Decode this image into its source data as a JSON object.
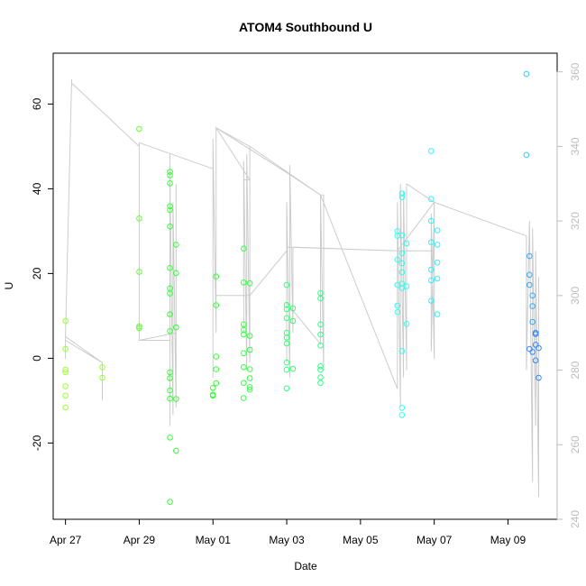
{
  "chart_data": {
    "type": "scatter",
    "title": "ATOM4 Southbound U",
    "xlabel": "Date",
    "ylabel": "U",
    "x_unit": "date",
    "xlim": [
      "2024-04-26T16:00",
      "2024-05-10T08:00"
    ],
    "ylim": [
      -38,
      72
    ],
    "x_ticks": [
      {
        "date": "2024-04-27T00:00",
        "label": "Apr 27"
      },
      {
        "date": "2024-04-29T00:00",
        "label": "Apr 29"
      },
      {
        "date": "2024-05-01T00:00",
        "label": "May 01"
      },
      {
        "date": "2024-05-03T00:00",
        "label": "May 03"
      },
      {
        "date": "2024-05-05T00:00",
        "label": "May 05"
      },
      {
        "date": "2024-05-07T00:00",
        "label": "May 07"
      },
      {
        "date": "2024-05-09T00:00",
        "label": "May 09"
      }
    ],
    "y_ticks": [
      -20,
      0,
      20,
      40,
      60
    ],
    "y2_range": [
      240,
      365
    ],
    "y2_ticks": [
      240,
      260,
      280,
      300,
      320,
      340,
      360
    ],
    "grid": false,
    "legend": "none",
    "points": [
      {
        "x": "2024-04-27T00:00",
        "y": 8.8,
        "color": "#99ff33"
      },
      {
        "x": "2024-04-27T00:00",
        "y": 2.2,
        "color": "#99ff33"
      },
      {
        "x": "2024-04-27T00:00",
        "y": -2.7,
        "color": "#99ff33"
      },
      {
        "x": "2024-04-27T00:00",
        "y": -3.3,
        "color": "#99ff33"
      },
      {
        "x": "2024-04-27T00:00",
        "y": -6.6,
        "color": "#99ff33"
      },
      {
        "x": "2024-04-27T00:00",
        "y": -8.8,
        "color": "#99ff33"
      },
      {
        "x": "2024-04-27T00:00",
        "y": -11.6,
        "color": "#99ff33"
      },
      {
        "x": "2024-04-28T00:00",
        "y": -2.1,
        "color": "#99ff33"
      },
      {
        "x": "2024-04-28T00:00",
        "y": -4.6,
        "color": "#99ff33"
      },
      {
        "x": "2024-04-29T00:00",
        "y": 54.1,
        "color": "#66ff33"
      },
      {
        "x": "2024-04-29T00:00",
        "y": 33.0,
        "color": "#66ff33"
      },
      {
        "x": "2024-04-29T00:00",
        "y": 20.4,
        "color": "#66ff33"
      },
      {
        "x": "2024-04-29T00:00",
        "y": 7.5,
        "color": "#66ff33"
      },
      {
        "x": "2024-04-29T00:00",
        "y": 7.1,
        "color": "#66ff33"
      },
      {
        "x": "2024-04-29T20:00",
        "y": 44.0,
        "color": "#33ff33"
      },
      {
        "x": "2024-04-29T20:00",
        "y": 43.2,
        "color": "#33ff33"
      },
      {
        "x": "2024-04-29T20:00",
        "y": 41.3,
        "color": "#33ff33"
      },
      {
        "x": "2024-04-29T20:00",
        "y": 35.9,
        "color": "#33ff33"
      },
      {
        "x": "2024-04-29T20:00",
        "y": 35.0,
        "color": "#33ff33"
      },
      {
        "x": "2024-04-29T20:00",
        "y": 31.1,
        "color": "#33ff33"
      },
      {
        "x": "2024-04-29T20:00",
        "y": 21.3,
        "color": "#33ff33"
      },
      {
        "x": "2024-04-29T20:00",
        "y": 16.5,
        "color": "#33ff33"
      },
      {
        "x": "2024-04-29T20:00",
        "y": 15.3,
        "color": "#33ff33"
      },
      {
        "x": "2024-04-29T20:00",
        "y": 10.4,
        "color": "#33ff33"
      },
      {
        "x": "2024-04-29T20:00",
        "y": 6.4,
        "color": "#33ff33"
      },
      {
        "x": "2024-04-29T20:00",
        "y": -3.3,
        "color": "#33ff33"
      },
      {
        "x": "2024-04-29T20:00",
        "y": -4.7,
        "color": "#33ff33"
      },
      {
        "x": "2024-04-29T20:00",
        "y": -7.6,
        "color": "#33ff33"
      },
      {
        "x": "2024-04-29T20:00",
        "y": -9.5,
        "color": "#33ff33"
      },
      {
        "x": "2024-04-29T20:00",
        "y": -18.7,
        "color": "#33ff33"
      },
      {
        "x": "2024-04-29T20:00",
        "y": -33.9,
        "color": "#33ff33"
      },
      {
        "x": "2024-04-30T00:00",
        "y": 26.8,
        "color": "#33ff33"
      },
      {
        "x": "2024-04-30T00:00",
        "y": 20.1,
        "color": "#33ff33"
      },
      {
        "x": "2024-04-30T00:00",
        "y": 7.3,
        "color": "#33ff33"
      },
      {
        "x": "2024-04-30T00:00",
        "y": -9.6,
        "color": "#33ff33"
      },
      {
        "x": "2024-04-30T00:00",
        "y": -21.8,
        "color": "#33ff33"
      },
      {
        "x": "2024-05-01T00:00",
        "y": -7.0,
        "color": "#33ff33"
      },
      {
        "x": "2024-05-01T00:00",
        "y": -8.6,
        "color": "#33ff33"
      },
      {
        "x": "2024-05-01T00:00",
        "y": -8.8,
        "color": "#33ff33"
      },
      {
        "x": "2024-05-01T02:00",
        "y": 19.3,
        "color": "#33ff33"
      },
      {
        "x": "2024-05-01T02:00",
        "y": 12.5,
        "color": "#33ff33"
      },
      {
        "x": "2024-05-01T02:00",
        "y": 0.4,
        "color": "#33ff33"
      },
      {
        "x": "2024-05-01T02:00",
        "y": -2.6,
        "color": "#33ff33"
      },
      {
        "x": "2024-05-01T02:00",
        "y": -5.9,
        "color": "#33ff33"
      },
      {
        "x": "2024-05-01T20:00",
        "y": 25.9,
        "color": "#33ff44"
      },
      {
        "x": "2024-05-01T20:00",
        "y": 17.9,
        "color": "#33ff44"
      },
      {
        "x": "2024-05-01T20:00",
        "y": 8.0,
        "color": "#33ff44"
      },
      {
        "x": "2024-05-01T20:00",
        "y": 6.7,
        "color": "#33ff44"
      },
      {
        "x": "2024-05-01T20:00",
        "y": 5.6,
        "color": "#33ff44"
      },
      {
        "x": "2024-05-01T20:00",
        "y": 1.2,
        "color": "#33ff44"
      },
      {
        "x": "2024-05-01T20:00",
        "y": -2.1,
        "color": "#33ff44"
      },
      {
        "x": "2024-05-01T20:00",
        "y": -5.8,
        "color": "#33ff44"
      },
      {
        "x": "2024-05-01T20:00",
        "y": -9.4,
        "color": "#33ff44"
      },
      {
        "x": "2024-05-02T00:00",
        "y": 17.7,
        "color": "#33ff44"
      },
      {
        "x": "2024-05-02T00:00",
        "y": 5.3,
        "color": "#33ff44"
      },
      {
        "x": "2024-05-02T00:00",
        "y": 2.0,
        "color": "#33ff44"
      },
      {
        "x": "2024-05-02T00:00",
        "y": -2.6,
        "color": "#33ff44"
      },
      {
        "x": "2024-05-02T00:00",
        "y": -4.7,
        "color": "#33ff44"
      },
      {
        "x": "2024-05-02T00:00",
        "y": -6.8,
        "color": "#33ff44"
      },
      {
        "x": "2024-05-02T00:00",
        "y": -7.4,
        "color": "#33ff44"
      },
      {
        "x": "2024-05-03T00:00",
        "y": 17.3,
        "color": "#33ff77"
      },
      {
        "x": "2024-05-03T00:00",
        "y": 12.6,
        "color": "#33ff77"
      },
      {
        "x": "2024-05-03T00:00",
        "y": 11.6,
        "color": "#33ff77"
      },
      {
        "x": "2024-05-03T00:00",
        "y": 9.5,
        "color": "#33ff77"
      },
      {
        "x": "2024-05-03T00:00",
        "y": 6.0,
        "color": "#33ff77"
      },
      {
        "x": "2024-05-03T00:00",
        "y": 4.9,
        "color": "#33ff77"
      },
      {
        "x": "2024-05-03T00:00",
        "y": 3.5,
        "color": "#33ff77"
      },
      {
        "x": "2024-05-03T00:00",
        "y": -1.0,
        "color": "#33ff77"
      },
      {
        "x": "2024-05-03T00:00",
        "y": -2.7,
        "color": "#33ff77"
      },
      {
        "x": "2024-05-03T00:00",
        "y": -7.1,
        "color": "#33ff77"
      },
      {
        "x": "2024-05-03T04:00",
        "y": 11.8,
        "color": "#33ff77"
      },
      {
        "x": "2024-05-03T04:00",
        "y": 8.8,
        "color": "#33ff77"
      },
      {
        "x": "2024-05-03T04:00",
        "y": -2.5,
        "color": "#33ff77"
      },
      {
        "x": "2024-05-03T22:00",
        "y": 15.4,
        "color": "#33ff88"
      },
      {
        "x": "2024-05-03T22:00",
        "y": 14.1,
        "color": "#33ff88"
      },
      {
        "x": "2024-05-03T22:00",
        "y": 8.0,
        "color": "#33ff88"
      },
      {
        "x": "2024-05-03T22:00",
        "y": 5.6,
        "color": "#33ff88"
      },
      {
        "x": "2024-05-03T22:00",
        "y": 3.0,
        "color": "#33ff88"
      },
      {
        "x": "2024-05-03T22:00",
        "y": -1.9,
        "color": "#33ff88"
      },
      {
        "x": "2024-05-03T22:00",
        "y": -2.7,
        "color": "#33ff88"
      },
      {
        "x": "2024-05-03T22:00",
        "y": -4.5,
        "color": "#33ff88"
      },
      {
        "x": "2024-05-03T22:00",
        "y": -5.8,
        "color": "#33ff88"
      },
      {
        "x": "2024-05-06T00:00",
        "y": 30.0,
        "color": "#33ffee"
      },
      {
        "x": "2024-05-06T00:00",
        "y": 28.9,
        "color": "#33ffee"
      },
      {
        "x": "2024-05-06T00:00",
        "y": 23.3,
        "color": "#33ffee"
      },
      {
        "x": "2024-05-06T00:00",
        "y": 17.3,
        "color": "#33ffee"
      },
      {
        "x": "2024-05-06T00:00",
        "y": 12.4,
        "color": "#33ffee"
      },
      {
        "x": "2024-05-06T00:00",
        "y": 10.9,
        "color": "#33ffee"
      },
      {
        "x": "2024-05-06T03:00",
        "y": 38.9,
        "color": "#33ffee"
      },
      {
        "x": "2024-05-06T03:00",
        "y": 38.0,
        "color": "#33ffee"
      },
      {
        "x": "2024-05-06T03:00",
        "y": 29.0,
        "color": "#33ffee"
      },
      {
        "x": "2024-05-06T03:00",
        "y": 24.8,
        "color": "#33ffee"
      },
      {
        "x": "2024-05-06T03:00",
        "y": 22.4,
        "color": "#33ffee"
      },
      {
        "x": "2024-05-06T03:00",
        "y": 20.3,
        "color": "#33ffee"
      },
      {
        "x": "2024-05-06T03:00",
        "y": 17.6,
        "color": "#33ffee"
      },
      {
        "x": "2024-05-06T03:00",
        "y": 16.6,
        "color": "#33ffee"
      },
      {
        "x": "2024-05-06T03:00",
        "y": 1.7,
        "color": "#33ffee"
      },
      {
        "x": "2024-05-06T03:00",
        "y": -11.7,
        "color": "#33ffee"
      },
      {
        "x": "2024-05-06T03:00",
        "y": -13.4,
        "color": "#33ffee"
      },
      {
        "x": "2024-05-06T06:00",
        "y": 27.1,
        "color": "#33ffee"
      },
      {
        "x": "2024-05-06T06:00",
        "y": 17.0,
        "color": "#33ffee"
      },
      {
        "x": "2024-05-06T06:00",
        "y": 8.1,
        "color": "#33ffee"
      },
      {
        "x": "2024-05-06T22:00",
        "y": 48.9,
        "color": "#33eeff"
      },
      {
        "x": "2024-05-06T22:00",
        "y": 37.6,
        "color": "#33eeff"
      },
      {
        "x": "2024-05-06T22:00",
        "y": 32.4,
        "color": "#33eeff"
      },
      {
        "x": "2024-05-06T22:00",
        "y": 27.4,
        "color": "#33eeff"
      },
      {
        "x": "2024-05-06T22:00",
        "y": 20.9,
        "color": "#33eeff"
      },
      {
        "x": "2024-05-06T22:00",
        "y": 18.4,
        "color": "#33eeff"
      },
      {
        "x": "2024-05-06T22:00",
        "y": 13.6,
        "color": "#33eeff"
      },
      {
        "x": "2024-05-07T02:00",
        "y": 30.2,
        "color": "#33eeff"
      },
      {
        "x": "2024-05-07T02:00",
        "y": 26.8,
        "color": "#33eeff"
      },
      {
        "x": "2024-05-07T02:00",
        "y": 22.6,
        "color": "#33eeff"
      },
      {
        "x": "2024-05-07T02:00",
        "y": 18.8,
        "color": "#33eeff"
      },
      {
        "x": "2024-05-07T02:00",
        "y": 10.4,
        "color": "#33eeff"
      },
      {
        "x": "2024-05-09T12:00",
        "y": 67.1,
        "color": "#33ccff"
      },
      {
        "x": "2024-05-09T12:00",
        "y": 48.0,
        "color": "#33ccff"
      },
      {
        "x": "2024-05-09T14:00",
        "y": 24.1,
        "color": "#33aaff"
      },
      {
        "x": "2024-05-09T14:00",
        "y": 19.7,
        "color": "#33aaff"
      },
      {
        "x": "2024-05-09T14:00",
        "y": 17.3,
        "color": "#33aaff"
      },
      {
        "x": "2024-05-09T16:00",
        "y": 14.8,
        "color": "#33aaff"
      },
      {
        "x": "2024-05-09T16:00",
        "y": 12.3,
        "color": "#33aaff"
      },
      {
        "x": "2024-05-09T16:00",
        "y": 8.6,
        "color": "#33aaff"
      },
      {
        "x": "2024-05-09T18:00",
        "y": 6.0,
        "color": "#3388ff"
      },
      {
        "x": "2024-05-09T18:00",
        "y": 5.7,
        "color": "#3388ff"
      },
      {
        "x": "2024-05-09T14:00",
        "y": 2.2,
        "color": "#3388ff"
      },
      {
        "x": "2024-05-09T16:00",
        "y": 1.5,
        "color": "#3388ff"
      },
      {
        "x": "2024-05-09T18:00",
        "y": 3.2,
        "color": "#3388ff"
      },
      {
        "x": "2024-05-09T20:00",
        "y": 2.4,
        "color": "#3388ff"
      },
      {
        "x": "2024-05-09T18:00",
        "y": -0.5,
        "color": "#3388ff"
      },
      {
        "x": "2024-05-09T20:00",
        "y": -4.6,
        "color": "#3388ff"
      }
    ],
    "direction_series": {
      "axis": "right",
      "color": "#cccccc",
      "points": [
        [
          "2024-04-27T00:00",
          287
        ],
        [
          "2024-04-27T00:00",
          283
        ],
        [
          "2024-04-27T00:00",
          289
        ],
        [
          "2024-04-27T00:00",
          288
        ],
        [
          "2024-04-28T00:00",
          282
        ],
        [
          "2024-04-28T00:00",
          272
        ],
        [
          "2024-04-28T00:00",
          282
        ],
        [
          "2024-04-27T00:00",
          289
        ],
        [
          "2024-04-27T04:00",
          358
        ],
        [
          "2024-04-27T04:00",
          357
        ],
        [
          "2024-04-29T00:00",
          340
        ],
        [
          "2024-04-29T00:00",
          288
        ],
        [
          "2024-04-29T20:00",
          288
        ],
        [
          "2024-04-29T20:00",
          338
        ],
        [
          "2024-04-29T20:00",
          265
        ],
        [
          "2024-04-29T20:00",
          332
        ],
        [
          "2024-04-29T22:00",
          268
        ],
        [
          "2024-04-29T22:00",
          325
        ],
        [
          "2024-04-30T00:00",
          270
        ],
        [
          "2024-04-30T00:00",
          330
        ],
        [
          "2024-04-30T00:00",
          290
        ],
        [
          "2024-04-29T00:00",
          288
        ],
        [
          "2024-04-29T00:00",
          341
        ],
        [
          "2024-04-29T00:00",
          341
        ],
        [
          "2024-05-01T00:00",
          334
        ],
        [
          "2024-05-01T00:00",
          278
        ],
        [
          "2024-05-01T00:00",
          342
        ],
        [
          "2024-05-01T02:00",
          290
        ],
        [
          "2024-05-01T02:00",
          344
        ],
        [
          "2024-05-01T02:00",
          300
        ],
        [
          "2024-05-02T00:00",
          300
        ],
        [
          "2024-05-02T00:00",
          300
        ],
        [
          "2024-05-01T02:00",
          300
        ],
        [
          "2024-05-01T02:00",
          345
        ],
        [
          "2024-05-02T00:00",
          331
        ],
        [
          "2024-05-01T20:00",
          331
        ],
        [
          "2024-05-01T20:00",
          290
        ],
        [
          "2024-05-01T20:00",
          336
        ],
        [
          "2024-05-01T22:00",
          280
        ],
        [
          "2024-05-01T22:00",
          338
        ],
        [
          "2024-05-02T00:00",
          282
        ],
        [
          "2024-05-02T00:00",
          340
        ],
        [
          "2024-05-02T00:00",
          300
        ],
        [
          "2024-05-03T00:00",
          312
        ],
        [
          "2024-05-03T00:00",
          282
        ],
        [
          "2024-05-03T00:00",
          325
        ],
        [
          "2024-05-03T02:00",
          278
        ],
        [
          "2024-05-03T02:00",
          335
        ],
        [
          "2024-05-03T04:00",
          290
        ],
        [
          "2024-05-03T04:00",
          313
        ],
        [
          "2024-05-06T00:00",
          312
        ],
        [
          "2024-05-06T00:00",
          312
        ],
        [
          "2024-05-03T00:00",
          313
        ],
        [
          "2024-05-03T00:00",
          298
        ],
        [
          "2024-05-03T22:00",
          287
        ],
        [
          "2024-05-03T22:00",
          327
        ],
        [
          "2024-05-04T00:00",
          280
        ],
        [
          "2024-05-04T00:00",
          327
        ],
        [
          "2024-05-03T22:00",
          327
        ],
        [
          "2024-05-03T00:00",
          333
        ],
        [
          "2024-05-01T02:00",
          345
        ],
        [
          "2024-05-02T00:00",
          340
        ],
        [
          "2024-05-03T22:00",
          327
        ],
        [
          "2024-05-06T00:00",
          275
        ],
        [
          "2024-05-06T00:00",
          325
        ],
        [
          "2024-05-06T02:00",
          270
        ],
        [
          "2024-05-06T02:00",
          330
        ],
        [
          "2024-05-06T04:00",
          278
        ],
        [
          "2024-05-06T04:00",
          328
        ],
        [
          "2024-05-06T06:00",
          280
        ],
        [
          "2024-05-06T06:00",
          310
        ],
        [
          "2024-05-06T06:00",
          330
        ],
        [
          "2024-05-07T00:00",
          325
        ],
        [
          "2024-05-06T22:00",
          285
        ],
        [
          "2024-05-06T22:00",
          322
        ],
        [
          "2024-05-07T00:00",
          283
        ],
        [
          "2024-05-07T00:00",
          325
        ],
        [
          "2024-05-06T00:00",
          312
        ],
        [
          "2024-05-07T00:00",
          312
        ],
        [
          "2024-05-07T00:00",
          325
        ],
        [
          "2024-05-09T12:00",
          316
        ],
        [
          "2024-05-09T12:00",
          280
        ],
        [
          "2024-05-09T14:00",
          320
        ],
        [
          "2024-05-09T16:00",
          250
        ],
        [
          "2024-05-09T16:00",
          318
        ],
        [
          "2024-05-09T18:00",
          265
        ],
        [
          "2024-05-09T18:00",
          312
        ],
        [
          "2024-05-09T20:00",
          246
        ],
        [
          "2024-05-09T20:00",
          305
        ]
      ]
    }
  }
}
